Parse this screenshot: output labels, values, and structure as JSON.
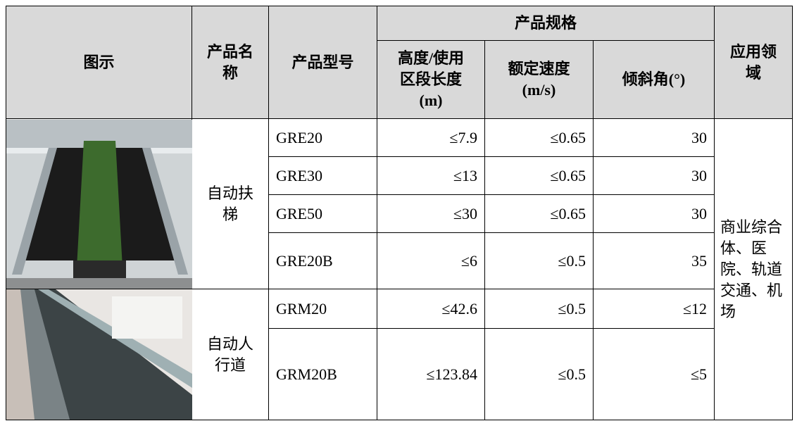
{
  "table": {
    "header": {
      "image": "图示",
      "name": "产品名称",
      "model": "产品型号",
      "spec": "产品规格",
      "height": "高度/使用区段长度(m)",
      "speed": "额定速度(m/s)",
      "angle": "倾斜角(°)",
      "application": "应用领域"
    },
    "groups": [
      {
        "name": "自动扶梯",
        "rows": [
          [
            "GRE20",
            "≤7.9",
            "≤0.65",
            "30"
          ],
          [
            "GRE30",
            "≤13",
            "≤0.65",
            "30"
          ],
          [
            "GRE50",
            "≤30",
            "≤0.65",
            "30"
          ],
          [
            "GRE20B",
            "≤6",
            "≤0.5",
            "35"
          ]
        ]
      },
      {
        "name": "自动人行道",
        "rows": [
          [
            "GRM20",
            "≤42.6",
            "≤0.5",
            "≤12"
          ],
          [
            "GRM20B",
            "≤123.84",
            "≤0.5",
            "≤5"
          ]
        ]
      }
    ],
    "application": "商业综合体、医院、轨道交通、机场"
  }
}
